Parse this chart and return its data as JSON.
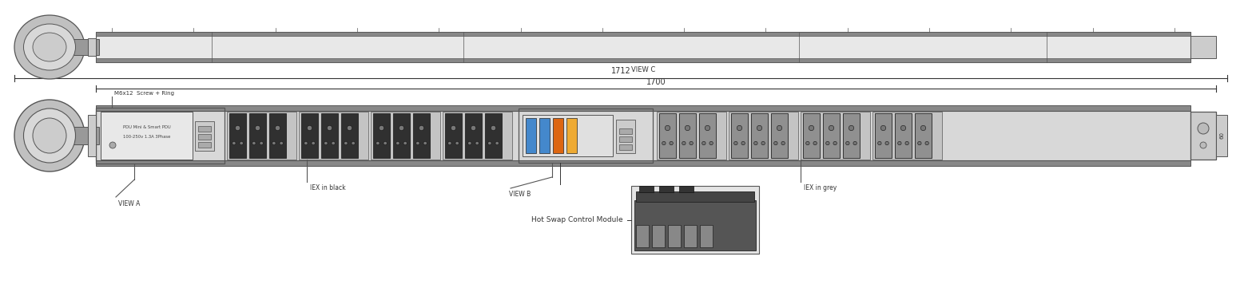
{
  "bg_color": "#ffffff",
  "line_color": "#555555",
  "dim_color": "#333333",
  "fig_width": 15.72,
  "fig_height": 3.56,
  "dim_1712": "1712",
  "dim_1700": "1700",
  "label_view_a": "VIEW A",
  "label_view_b": "VIEW B",
  "label_iex_black": "IEX in black",
  "label_iex_grey": "IEX in grey",
  "label_hot_swap": "Hot Swap Control Module",
  "label_screw": "M6x12  Screw + Ring",
  "label_view_c": "VIEW C"
}
